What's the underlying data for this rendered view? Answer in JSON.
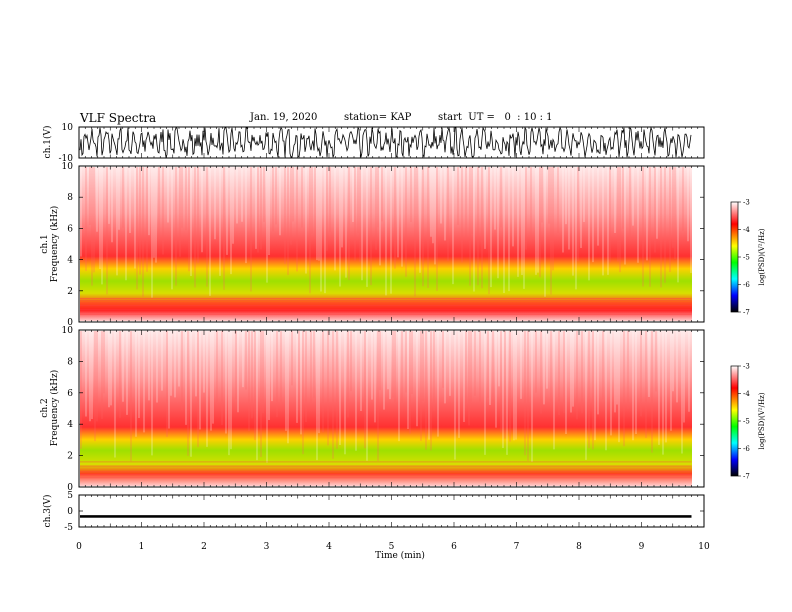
{
  "header": {
    "title": "VLF Spectra",
    "date": "Jan. 19, 2020",
    "station": "station= KAP",
    "start": "start  UT =   0  : 10 : 1"
  },
  "chart_data": [
    {
      "type": "line",
      "panel": "ch1-waveform",
      "ylabel": "ch.1(V)",
      "ylim": [
        -10,
        10
      ],
      "yticks": [
        "10",
        "-10"
      ],
      "xlim": [
        0,
        10
      ],
      "data_extent_min": [
        0,
        9.8
      ],
      "color": "#000000"
    },
    {
      "type": "heatmap",
      "panel": "ch1-spectrogram",
      "ylabel": "ch.1",
      "ylabel2": "Frequency  (kHz)",
      "ylim": [
        0,
        10
      ],
      "yticks": [
        "0",
        "2",
        "4",
        "6",
        "8",
        "10"
      ],
      "xlim": [
        0,
        10
      ],
      "data_extent_min": [
        0,
        9.8
      ],
      "colorbar": {
        "label": "log(PSD)(V²/Hz)",
        "range": [
          -7,
          -3
        ],
        "ticks": [
          "-3",
          "-4",
          "-5",
          "-6",
          "-7"
        ],
        "colors": [
          "#ffffff",
          "#ff0000",
          "#ffff00",
          "#00ff00",
          "#00ffff",
          "#0000ff",
          "#000000"
        ]
      }
    },
    {
      "type": "heatmap",
      "panel": "ch2-spectrogram",
      "ylabel": "ch.2",
      "ylabel2": "Frequency  (kHz)",
      "ylim": [
        0,
        10
      ],
      "yticks": [
        "0",
        "2",
        "4",
        "6",
        "8",
        "10"
      ],
      "xlim": [
        0,
        10
      ],
      "data_extent_min": [
        0,
        9.8
      ],
      "colorbar": {
        "label": "log(PSD)(V²/Hz)",
        "range": [
          -7,
          -3
        ],
        "ticks": [
          "-3",
          "-4",
          "-5",
          "-6",
          "-7"
        ],
        "colors": [
          "#ffffff",
          "#ff0000",
          "#ffff00",
          "#00ff00",
          "#00ffff",
          "#0000ff",
          "#000000"
        ]
      }
    },
    {
      "type": "line",
      "panel": "ch3-waveform",
      "ylabel": "ch.3(V)",
      "ylim": [
        -5,
        5
      ],
      "yticks": [
        "5",
        "0",
        "-5"
      ],
      "xlim": [
        0,
        10
      ],
      "data_extent_min": [
        0,
        9.8
      ],
      "approx_level": -1.7,
      "color": "#000000"
    }
  ],
  "xaxis": {
    "label": "Time  (min)",
    "ticks": [
      "0",
      "1",
      "2",
      "3",
      "4",
      "5",
      "6",
      "7",
      "8",
      "9",
      "10"
    ]
  }
}
